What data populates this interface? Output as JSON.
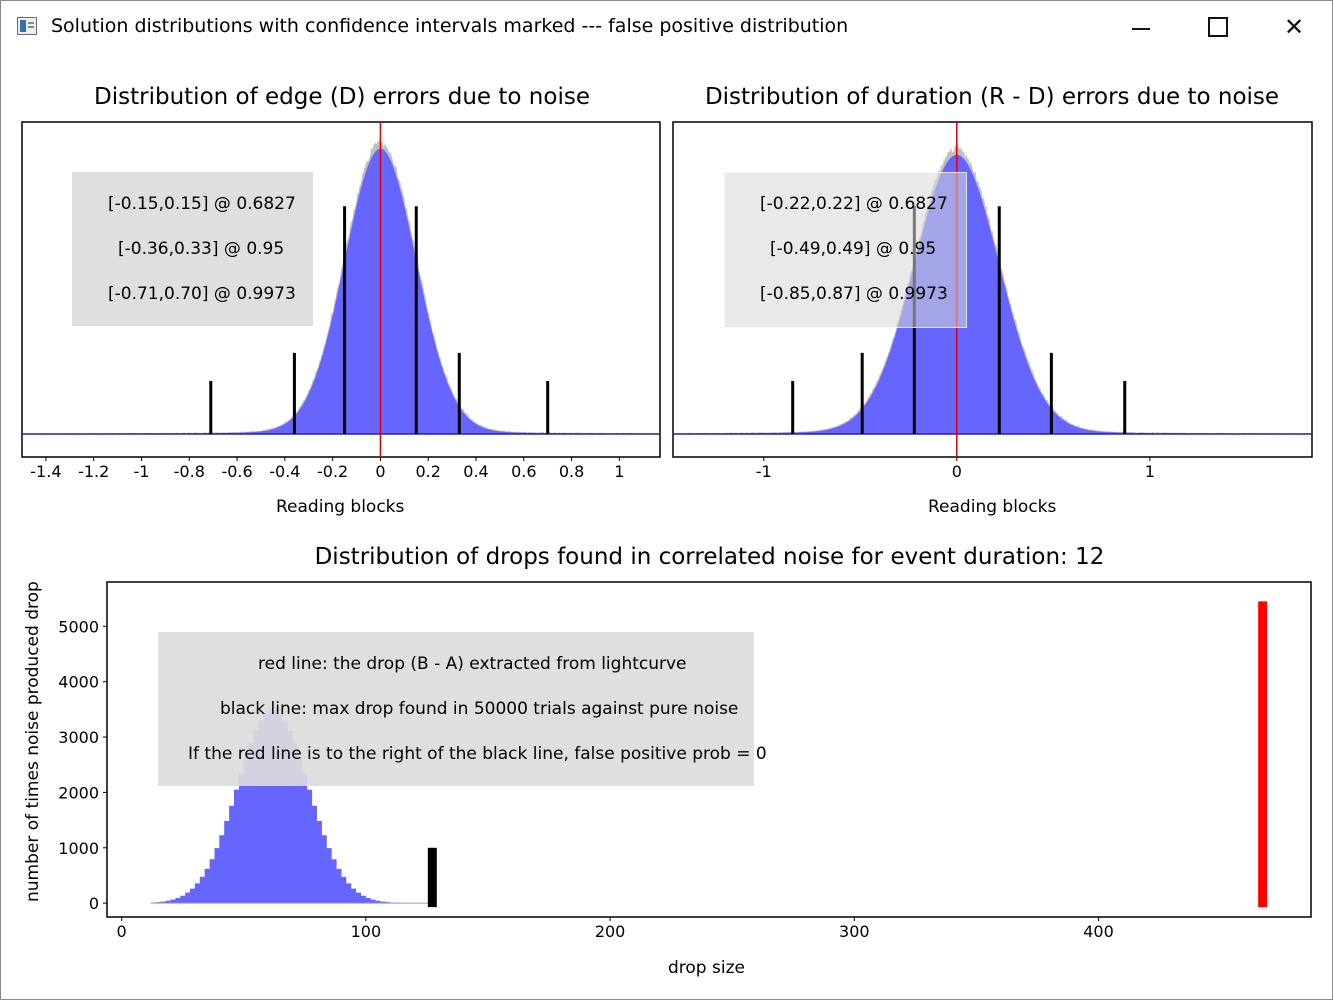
{
  "window": {
    "title": "Solution distributions with confidence intervals marked --- false positive distribution",
    "icon": "app-window-icon",
    "controls": {
      "minimize": "minimize-icon",
      "maximize": "maximize-icon",
      "close": "close-icon"
    }
  },
  "colors": {
    "histogram": "#6666ff",
    "histogram_outline": "#c0c0c0",
    "center_line": "#dd0000",
    "ci_lines": "#000000",
    "legend_bg": "#dcdcdc",
    "drop_red": "#ff0000"
  },
  "chart_data": [
    {
      "id": "edge",
      "type": "bar",
      "title": "Distribution of edge (D) errors due to noise",
      "xlabel": "Reading blocks",
      "ylabel": "",
      "xlim": [
        -1.5,
        1.17
      ],
      "xticks": [
        -1.4,
        -1.2,
        -1,
        -0.8,
        -0.6,
        -0.4,
        -0.2,
        0,
        0.2,
        0.4,
        0.6,
        0.8,
        1
      ],
      "xtick_labels": [
        "-1.4",
        "-1.2",
        "-1",
        "-0.8",
        "-0.6",
        "-0.4",
        "-0.2",
        "0",
        "0.2",
        "0.4",
        "0.6",
        "0.8",
        "1"
      ],
      "distribution": {
        "shape": "gaussian",
        "mean": 0,
        "sigma": 0.15,
        "peak_fraction": 0.93
      },
      "center_line": 0,
      "ci_lines": [
        {
          "x": -0.71,
          "height": 0.17
        },
        {
          "x": -0.36,
          "height": 0.26
        },
        {
          "x": -0.15,
          "height": 0.73
        },
        {
          "x": 0.15,
          "height": 0.73
        },
        {
          "x": 0.33,
          "height": 0.26
        },
        {
          "x": 0.7,
          "height": 0.17
        }
      ],
      "legend": [
        "[-0.15,0.15] @ 0.6827",
        "[-0.36,0.33] @ 0.95",
        "[-0.71,0.70] @ 0.9973"
      ]
    },
    {
      "id": "duration",
      "type": "bar",
      "title": "Distribution of duration (R - D) errors due to noise",
      "xlabel": "Reading blocks",
      "ylabel": "",
      "xlim": [
        -1.47,
        1.84
      ],
      "xticks": [
        -1,
        0,
        1
      ],
      "xtick_labels": [
        "-1",
        "0",
        "1"
      ],
      "distribution": {
        "shape": "gaussian",
        "mean": 0,
        "sigma": 0.22,
        "peak_fraction": 0.91
      },
      "center_line": 0,
      "ci_lines": [
        {
          "x": -0.85,
          "height": 0.17
        },
        {
          "x": -0.49,
          "height": 0.26
        },
        {
          "x": -0.22,
          "height": 0.73
        },
        {
          "x": 0.22,
          "height": 0.73
        },
        {
          "x": 0.49,
          "height": 0.26
        },
        {
          "x": 0.87,
          "height": 0.17
        }
      ],
      "legend": [
        "[-0.22,0.22] @ 0.6827",
        "[-0.49,0.49] @ 0.95",
        "[-0.85,0.87] @ 0.9973"
      ]
    },
    {
      "id": "drops",
      "type": "bar",
      "title": "Distribution of drops found in correlated noise for event duration: 12",
      "xlabel": "drop size",
      "ylabel": "number of times noise produced drop",
      "xlim": [
        -6,
        487
      ],
      "ylim": [
        -250,
        5800
      ],
      "xticks": [
        0,
        100,
        200,
        300,
        400
      ],
      "xtick_labels": [
        "0",
        "100",
        "200",
        "300",
        "400"
      ],
      "yticks": [
        0,
        1000,
        2000,
        3000,
        4000,
        5000
      ],
      "ytick_labels": [
        "0",
        "1000",
        "2000",
        "3000",
        "4000",
        "5000"
      ],
      "distribution": {
        "shape": "gaussian",
        "mean": 61,
        "sigma": 14.5,
        "peak": 3500,
        "x_from": 12,
        "x_to": 126,
        "bin_width": 2
      },
      "black_line": {
        "x": 127,
        "y_top": 1000
      },
      "red_line": {
        "x": 467,
        "y_top": 5450
      },
      "legend": [
        "red line: the drop (B - A) extracted from lightcurve",
        "black line: max drop found in 50000 trials against pure noise",
        "If the red line is to the right of the black line, false positive prob = 0"
      ]
    }
  ]
}
